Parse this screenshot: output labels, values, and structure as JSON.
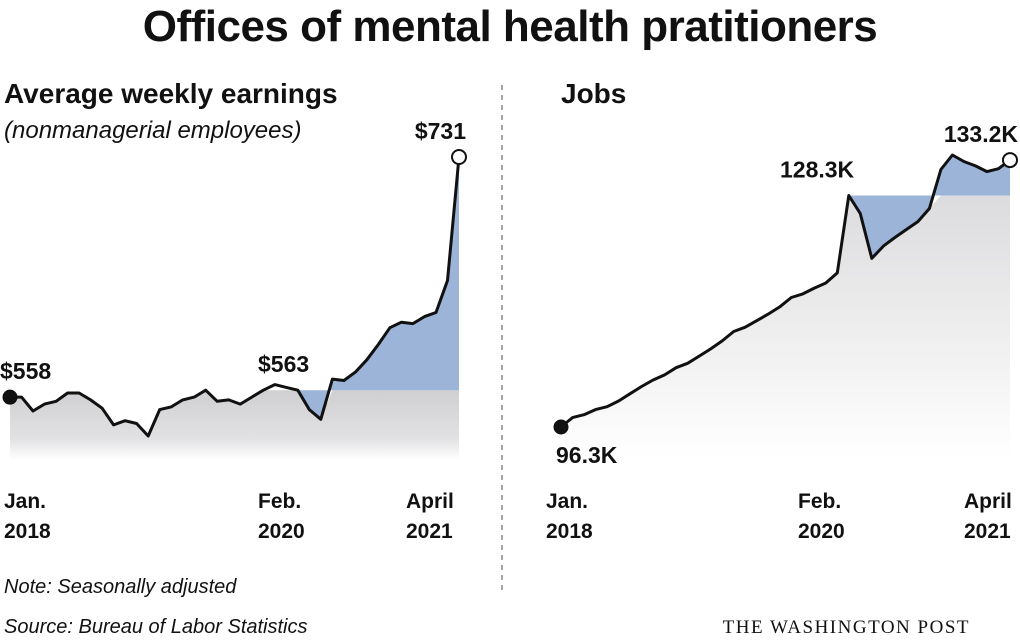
{
  "title": "Offices of mental health pratitioners",
  "note": "Note: Seasonally adjusted",
  "source": "Source: Bureau of Labor Statistics",
  "brand": "THE WASHINGTON POST",
  "colors": {
    "line": "#111111",
    "fill_gray": "#d9d9db",
    "fill_blue": "#9cb4d8"
  },
  "chart_data": [
    {
      "type": "area",
      "title": "Average weekly earnings",
      "subtitle": "(nonmanagerial employees)",
      "x_tick_labels": [
        [
          "Jan.",
          "2018"
        ],
        [
          "Feb.",
          "2020"
        ],
        [
          "April",
          "2021"
        ]
      ],
      "x": [
        "2018-01",
        "2018-02",
        "2018-03",
        "2018-04",
        "2018-05",
        "2018-06",
        "2018-07",
        "2018-08",
        "2018-09",
        "2018-10",
        "2018-11",
        "2018-12",
        "2019-01",
        "2019-02",
        "2019-03",
        "2019-04",
        "2019-05",
        "2019-06",
        "2019-07",
        "2019-08",
        "2019-09",
        "2019-10",
        "2019-11",
        "2019-12",
        "2020-01",
        "2020-02",
        "2020-03",
        "2020-04",
        "2020-05",
        "2020-06",
        "2020-07",
        "2020-08",
        "2020-09",
        "2020-10",
        "2020-11",
        "2020-12",
        "2021-01",
        "2021-02",
        "2021-03",
        "2021-04"
      ],
      "y": [
        558,
        558,
        548,
        553,
        555,
        561,
        561,
        556,
        550,
        538,
        541,
        539,
        530,
        549,
        551,
        556,
        558,
        563,
        555,
        556,
        553,
        558,
        563,
        567,
        565,
        563,
        549,
        542,
        571,
        570,
        576,
        585,
        596,
        608,
        612,
        611,
        616,
        619,
        642,
        731
      ],
      "units": "$",
      "baseline_value": 563,
      "labels": [
        {
          "x": "2018-01",
          "text": "$558"
        },
        {
          "x": "2020-02",
          "text": "$563"
        },
        {
          "x": "2021-04",
          "text": "$731"
        }
      ]
    },
    {
      "type": "area",
      "title": "Jobs",
      "x_tick_labels": [
        [
          "Jan.",
          "2018"
        ],
        [
          "Feb.",
          "2020"
        ],
        [
          "April",
          "2021"
        ]
      ],
      "x": [
        "2018-01",
        "2018-02",
        "2018-03",
        "2018-04",
        "2018-05",
        "2018-06",
        "2018-07",
        "2018-08",
        "2018-09",
        "2018-10",
        "2018-11",
        "2018-12",
        "2019-01",
        "2019-02",
        "2019-03",
        "2019-04",
        "2019-05",
        "2019-06",
        "2019-07",
        "2019-08",
        "2019-09",
        "2019-10",
        "2019-11",
        "2019-12",
        "2020-01",
        "2020-02",
        "2020-03",
        "2020-04",
        "2020-05",
        "2020-06",
        "2020-07",
        "2020-08",
        "2020-09",
        "2020-10",
        "2020-11",
        "2020-12",
        "2021-01",
        "2021-02",
        "2021-03",
        "2021-04"
      ],
      "y": [
        96.3,
        97.6,
        98.0,
        98.7,
        99.1,
        99.9,
        100.9,
        101.9,
        102.8,
        103.5,
        104.5,
        105.1,
        106.1,
        107.1,
        108.2,
        109.5,
        110.1,
        111.0,
        111.9,
        112.9,
        114.2,
        114.7,
        115.5,
        116.2,
        117.6,
        128.3,
        125.8,
        119.6,
        121.3,
        122.5,
        123.6,
        124.7,
        126.5,
        131.9,
        133.9,
        133.0,
        132.4,
        131.6,
        132.0,
        133.2
      ],
      "units": "K",
      "baseline_value": 128.3,
      "labels": [
        {
          "x": "2018-01",
          "text": "96.3K"
        },
        {
          "x": "2020-02",
          "text": "128.3K"
        },
        {
          "x": "2021-04",
          "text": "133.2K"
        }
      ]
    }
  ]
}
